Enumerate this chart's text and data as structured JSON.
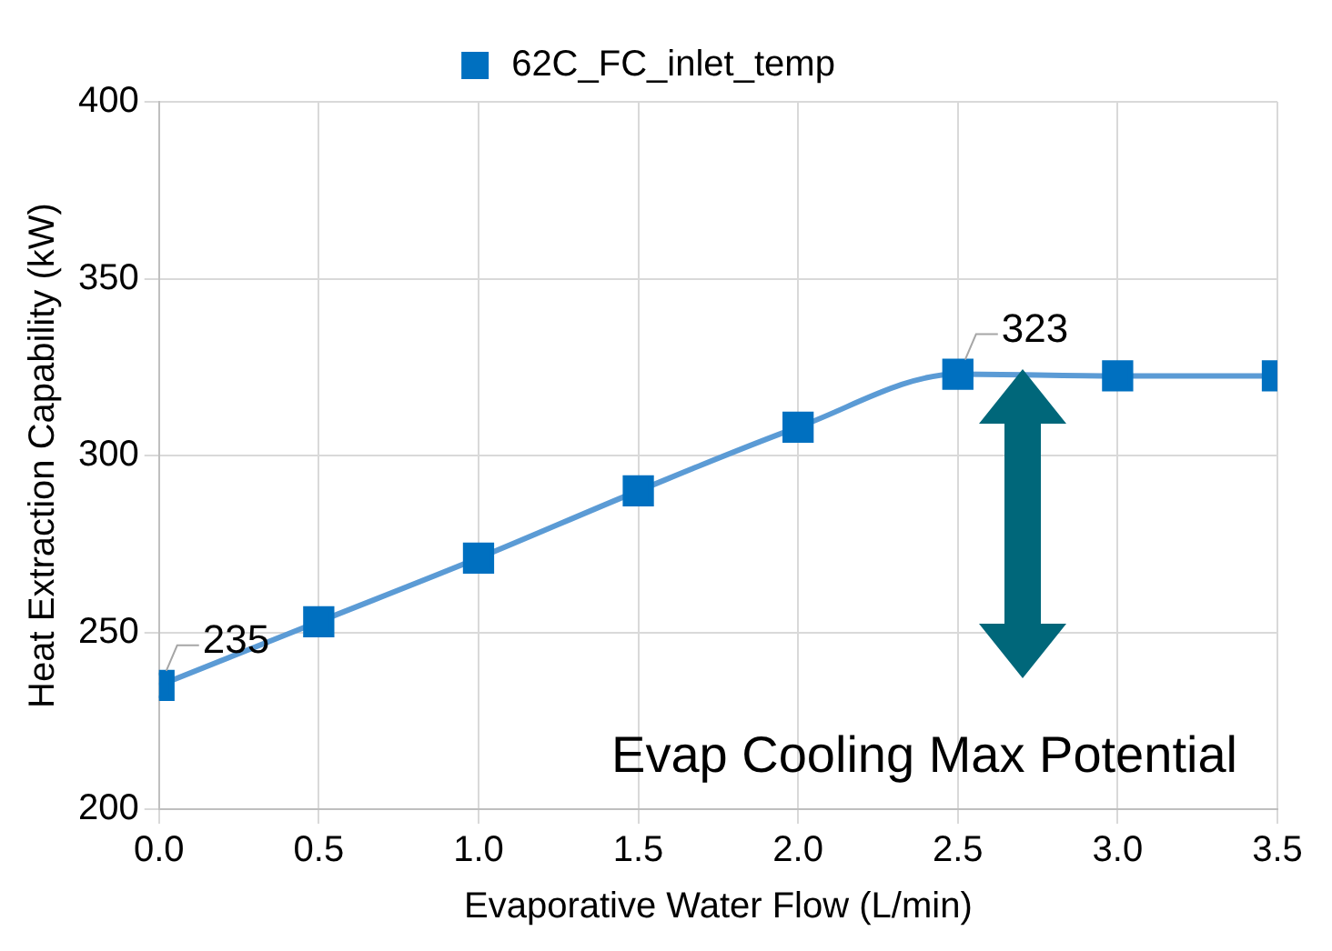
{
  "chart_data": {
    "type": "line",
    "xlabel": "Evaporative Water Flow (L/min)",
    "ylabel": "Heat Extraction Capability (kW)",
    "x": [
      0,
      0.5,
      1,
      1.5,
      2,
      2.5,
      3,
      3.5
    ],
    "series": [
      {
        "name": "62C_FC_inlet_temp",
        "color": "#0070c0",
        "values": [
          235,
          253,
          271,
          290,
          308,
          323,
          322.5,
          322.5
        ],
        "value_labels": [
          "235",
          null,
          null,
          null,
          null,
          "323",
          null,
          null
        ]
      }
    ],
    "xlim": [
      0,
      3.5
    ],
    "xticks": [
      {
        "value": 0,
        "label": "0.0"
      },
      {
        "value": 0.5,
        "label": "0.5"
      },
      {
        "value": 1,
        "label": "1.0"
      },
      {
        "value": 1.5,
        "label": "1.5"
      },
      {
        "value": 2,
        "label": "2.0"
      },
      {
        "value": 2.5,
        "label": "2.5"
      },
      {
        "value": 3,
        "label": "3.0"
      },
      {
        "value": 3.5,
        "label": "3.5"
      }
    ],
    "ylim": [
      200,
      400
    ],
    "yticks": [
      200,
      250,
      300,
      350,
      400
    ],
    "annotations": [
      "Evap Cooling Max Potential"
    ],
    "grid": true,
    "legend": "top",
    "marker": "square",
    "line_style": "solid"
  }
}
